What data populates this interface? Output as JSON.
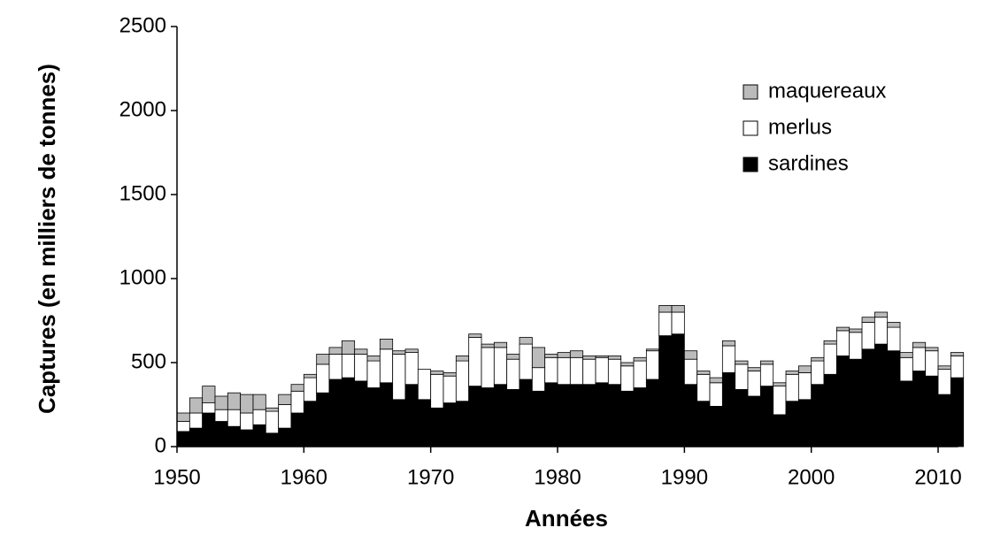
{
  "chart_data": {
    "type": "bar",
    "stacked": true,
    "x_label": "Années",
    "y_label": "Captures (en milliers de tonnes)",
    "x": [
      1950,
      1951,
      1952,
      1953,
      1954,
      1955,
      1956,
      1957,
      1958,
      1959,
      1960,
      1961,
      1962,
      1963,
      1964,
      1965,
      1966,
      1967,
      1968,
      1969,
      1970,
      1971,
      1972,
      1973,
      1974,
      1975,
      1976,
      1977,
      1978,
      1979,
      1980,
      1981,
      1982,
      1983,
      1984,
      1985,
      1986,
      1987,
      1988,
      1989,
      1990,
      1991,
      1992,
      1993,
      1994,
      1995,
      1996,
      1997,
      1998,
      1999,
      2000,
      2001,
      2002,
      2003,
      2004,
      2005,
      2006,
      2007,
      2008,
      2009,
      2010,
      2011
    ],
    "series": [
      {
        "name": "sardines",
        "color": "#000000",
        "values": [
          90,
          110,
          200,
          150,
          120,
          100,
          130,
          80,
          110,
          200,
          270,
          320,
          400,
          410,
          390,
          350,
          380,
          280,
          370,
          280,
          230,
          260,
          270,
          360,
          350,
          370,
          340,
          400,
          330,
          380,
          370,
          370,
          370,
          380,
          370,
          330,
          350,
          400,
          660,
          670,
          370,
          270,
          240,
          440,
          340,
          300,
          360,
          190,
          270,
          280,
          370,
          430,
          540,
          520,
          580,
          610,
          570,
          390,
          450,
          420,
          310,
          410
        ]
      },
      {
        "name": "merlus",
        "color": "#ffffff",
        "values": [
          60,
          90,
          60,
          70,
          100,
          100,
          90,
          130,
          140,
          130,
          140,
          170,
          150,
          140,
          160,
          160,
          200,
          270,
          190,
          180,
          200,
          160,
          240,
          290,
          240,
          220,
          180,
          210,
          140,
          150,
          160,
          160,
          150,
          150,
          150,
          150,
          160,
          170,
          140,
          130,
          150,
          160,
          140,
          160,
          150,
          150,
          130,
          170,
          160,
          160,
          140,
          180,
          150,
          160,
          160,
          160,
          140,
          140,
          140,
          150,
          150,
          130
        ]
      },
      {
        "name": "maquereaux",
        "color": "#bbbbbb",
        "values": [
          50,
          90,
          100,
          80,
          100,
          110,
          90,
          20,
          60,
          40,
          20,
          60,
          40,
          80,
          30,
          30,
          60,
          20,
          20,
          0,
          20,
          20,
          30,
          20,
          20,
          30,
          30,
          40,
          120,
          20,
          30,
          40,
          20,
          10,
          20,
          20,
          20,
          10,
          40,
          40,
          50,
          20,
          30,
          30,
          20,
          20,
          20,
          20,
          20,
          40,
          20,
          20,
          20,
          20,
          30,
          30,
          30,
          30,
          30,
          20,
          20,
          20
        ]
      }
    ],
    "xlim": [
      1950,
      2012
    ],
    "xticks": [
      1950,
      1960,
      1970,
      1980,
      1990,
      2000,
      2010
    ],
    "ylim": [
      0,
      2500
    ],
    "yticks": [
      0,
      500,
      1000,
      1500,
      2000,
      2500
    ],
    "legend": "top-right"
  }
}
